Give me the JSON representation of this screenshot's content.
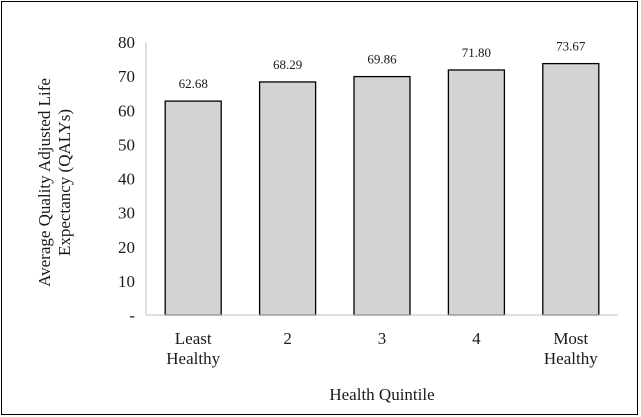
{
  "chart_data": {
    "type": "bar",
    "categories": [
      [
        "Least",
        "Healthy"
      ],
      [
        "2"
      ],
      [
        "3"
      ],
      [
        "4"
      ],
      [
        "Most",
        "Healthy"
      ]
    ],
    "values": [
      62.68,
      68.29,
      69.86,
      71.8,
      73.67
    ],
    "data_labels": [
      "62.68",
      "68.29",
      "69.86",
      "71.80",
      "73.67"
    ],
    "xlabel": "Health Quintile",
    "ylabel_lines": [
      "Average Quality Adjusted Life",
      "Expectancy (QALYs)"
    ],
    "ylim": [
      0,
      80
    ],
    "yticks": [
      0,
      10,
      20,
      30,
      40,
      50,
      60,
      70,
      80
    ],
    "ytick_labels": [
      "-",
      "10",
      "20",
      "30",
      "40",
      "50",
      "60",
      "70",
      "80"
    ],
    "grid": false,
    "legend": "none",
    "colors": {
      "bar_fill": "#d3d3d3",
      "bar_stroke": "#000000",
      "axis": "#bfbfbf"
    }
  }
}
